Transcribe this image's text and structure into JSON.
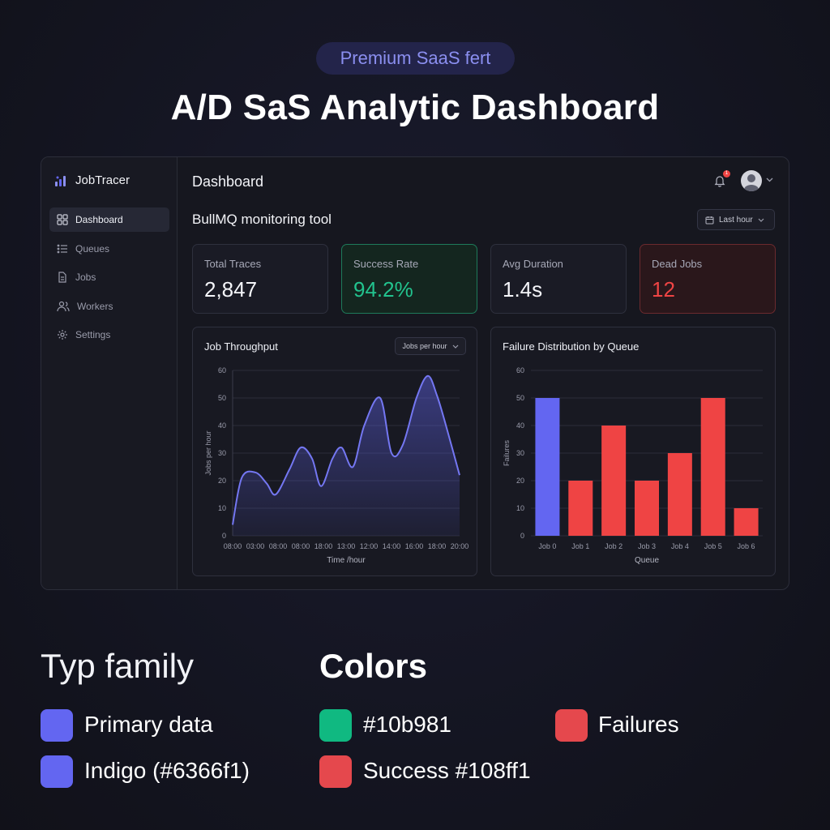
{
  "hero": {
    "pill": "Premium SaaS fert",
    "title": "A/D SaS Analytic Dashboard"
  },
  "app": {
    "brand": "JobTracer",
    "nav": [
      {
        "label": "Dashboard",
        "icon": "grid-icon",
        "active": true
      },
      {
        "label": "Queues",
        "icon": "list-icon"
      },
      {
        "label": "Jobs",
        "icon": "file-icon"
      },
      {
        "label": "Workers",
        "icon": "users-icon"
      },
      {
        "label": "Settings",
        "icon": "gear-icon"
      }
    ],
    "page_title": "Dashboard",
    "subtitle": "BullMQ monitoring tool",
    "notification_count": "1",
    "range_select": "Last hour",
    "kpis": [
      {
        "label": "Total Traces",
        "value": "2,847"
      },
      {
        "label": "Success Rate",
        "value": "94.2%"
      },
      {
        "label": "Avg Duration",
        "value": "1.4s"
      },
      {
        "label": "Dead Jobs",
        "value": "12"
      }
    ]
  },
  "chart_data": [
    {
      "type": "area",
      "title": "Job Throughput",
      "selector": "Jobs per hour",
      "xlabel": "Time /hour",
      "ylabel": "Jobs per hour",
      "categories": [
        "08:00",
        "03:00",
        "08:00",
        "08:00",
        "18:00",
        "13:00",
        "12:00",
        "14:00",
        "16:00",
        "18:00",
        "20:00"
      ],
      "yticks": [
        0,
        10,
        20,
        30,
        40,
        50,
        60
      ],
      "ylim": [
        0,
        60
      ],
      "x": [
        0,
        0.4,
        1.0,
        1.5,
        1.9,
        2.5,
        3.0,
        3.5,
        3.9,
        4.4,
        4.8,
        5.3,
        5.8,
        6.5,
        7.0,
        7.5,
        8.1,
        8.6,
        9.0,
        9.4,
        10.0
      ],
      "y": [
        4,
        21,
        23,
        19,
        15,
        24,
        32,
        28,
        18,
        28,
        32,
        25,
        40,
        50,
        30,
        33,
        50,
        58,
        51,
        40,
        22
      ],
      "color": "#6366f1",
      "grid": true
    },
    {
      "type": "bar",
      "title": "Failure Distribution by Queue",
      "xlabel": "Queue",
      "ylabel": "Failures",
      "categories": [
        "Job 0",
        "Job 1",
        "Job 2",
        "Job 3",
        "Job 4",
        "Job 5",
        "Job 6"
      ],
      "values": [
        50,
        20,
        40,
        20,
        30,
        50,
        10
      ],
      "colors": [
        "#6366f1",
        "#ef4444",
        "#ef4444",
        "#ef4444",
        "#ef4444",
        "#ef4444",
        "#ef4444"
      ],
      "yticks": [
        0,
        10,
        20,
        30,
        40,
        50,
        60
      ],
      "ylim": [
        0,
        60
      ],
      "grid": true
    }
  ],
  "legend": {
    "type_heading": "Typ family",
    "colors_heading": "Colors",
    "items": [
      {
        "label": "Primary data",
        "color": "#6366f1"
      },
      {
        "label": "Indigo (#6366f1)",
        "color": "#6366f1"
      },
      {
        "label": "#10b981",
        "color": "#10b981"
      },
      {
        "label": "Success #108ff1",
        "color": "#e5484d"
      },
      {
        "label": "Failures",
        "color": "#e5484d"
      }
    ]
  }
}
